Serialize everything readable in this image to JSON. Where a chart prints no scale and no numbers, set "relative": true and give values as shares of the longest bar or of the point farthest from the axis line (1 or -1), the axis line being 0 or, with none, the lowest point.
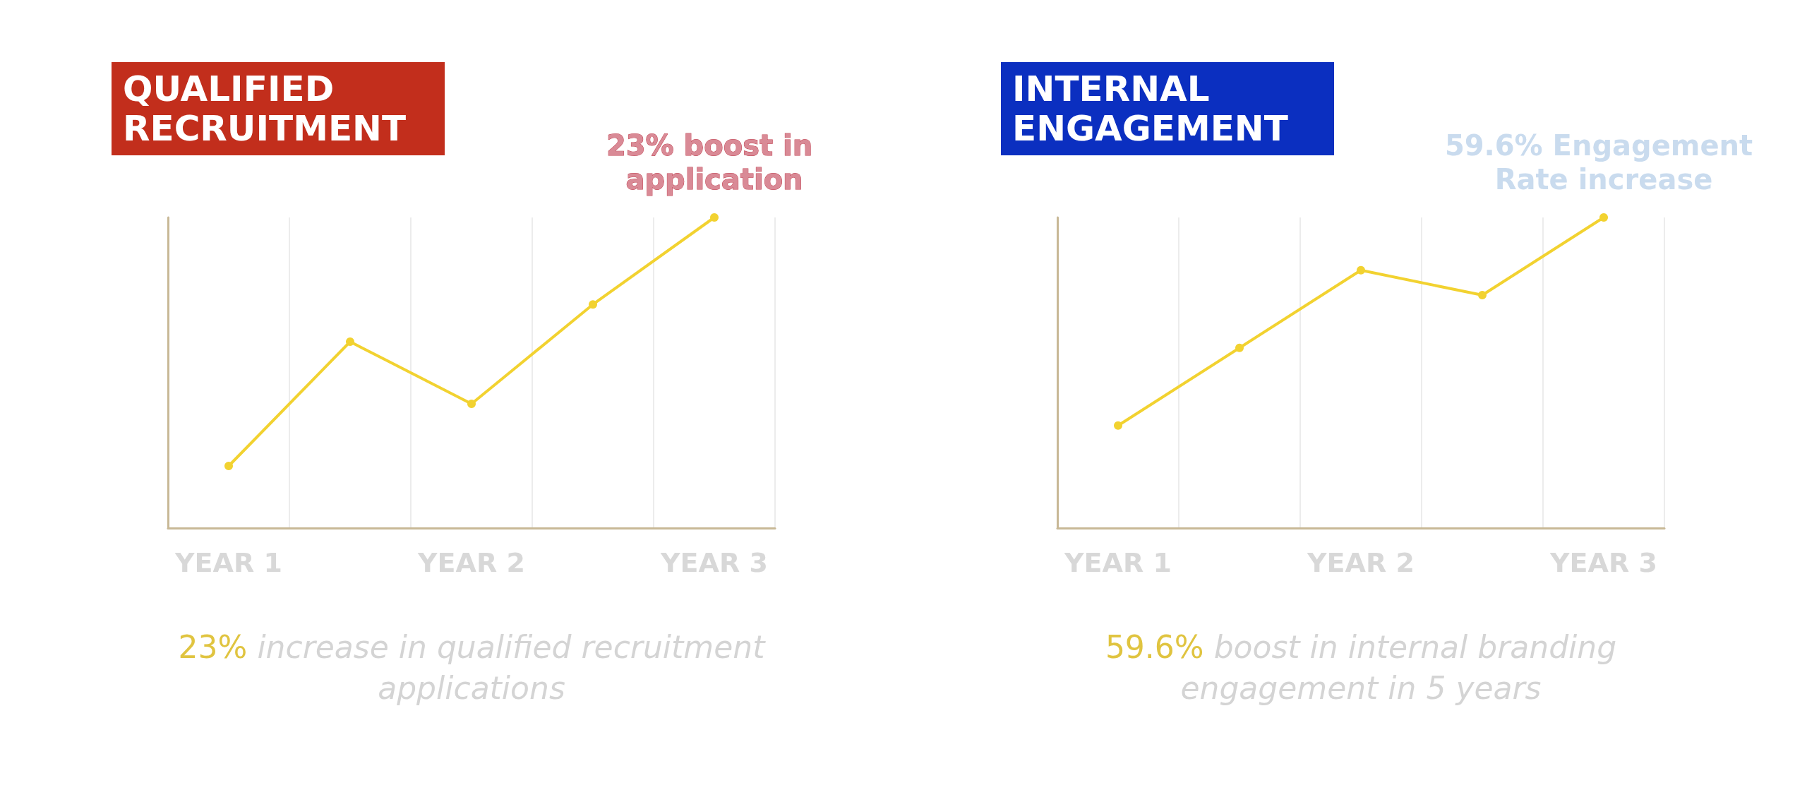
{
  "chart_data": [
    {
      "type": "line",
      "title": "QUALIFIED RECRUITMENT",
      "relative": true,
      "categories": [
        "YEAR 1",
        null,
        "YEAR 2",
        null,
        "YEAR 3"
      ],
      "series": [
        {
          "color": "#f2d230",
          "values": [
            0.2,
            0.6,
            0.4,
            0.72,
            1
          ]
        }
      ],
      "marker": "circle",
      "grid": "x",
      "annotations": [
        {
          "text": "23% boost in application",
          "x": "YEAR 3",
          "y": 1
        },
        "23% increase in qualified recruitment applications"
      ]
    },
    {
      "type": "line",
      "title": "INTERNAL ENGAGEMENT",
      "relative": true,
      "categories": [
        "YEAR 1",
        null,
        "YEAR 2",
        null,
        "YEAR 3"
      ],
      "series": [
        {
          "color": "#f2d230",
          "values": [
            0.33,
            0.58,
            0.83,
            0.75,
            1
          ]
        }
      ],
      "marker": "circle",
      "grid": "x",
      "annotations": [
        {
          "text": "59.6% Engagement Rate increase",
          "x": "YEAR 3",
          "y": 1
        },
        "59.6% boost in internal branding engagement in 5 years"
      ]
    }
  ]
}
